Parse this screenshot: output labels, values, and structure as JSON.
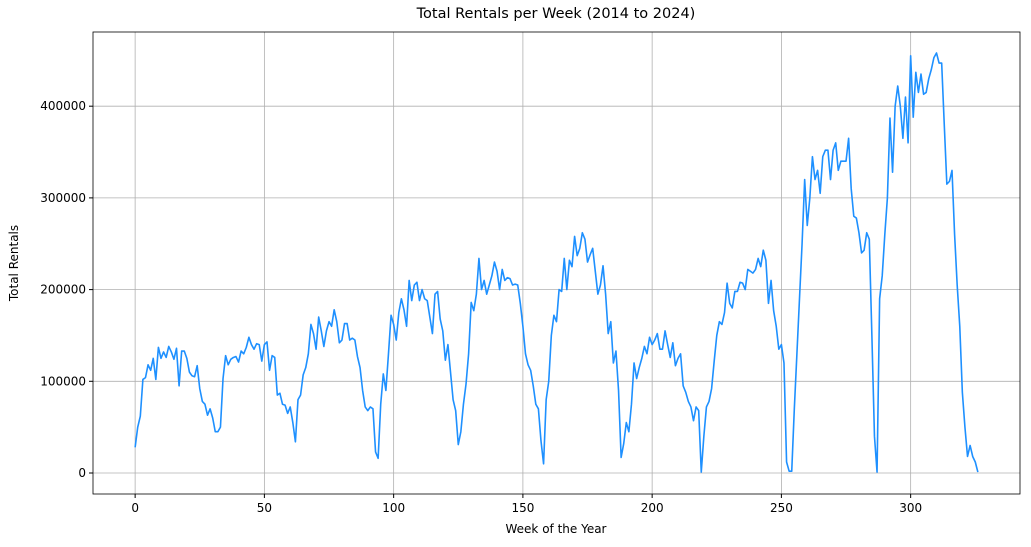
{
  "chart_data": {
    "type": "line",
    "title": "Total Rentals per Week (2014 to 2024)",
    "x_label": "Week of the Year",
    "y_label": "Total Rentals",
    "grid": true,
    "x": [
      0,
      1,
      2,
      3,
      4,
      5,
      6,
      7,
      8,
      9,
      10,
      11,
      12,
      13,
      14,
      15,
      16,
      17,
      18,
      19,
      20,
      21,
      22,
      23,
      24,
      25,
      26,
      27,
      28,
      29,
      30,
      31,
      32,
      33,
      34,
      35,
      36,
      37,
      38,
      39,
      40,
      41,
      42,
      43,
      44,
      45,
      46,
      47,
      48,
      49,
      50,
      51,
      52,
      53,
      54,
      55,
      56,
      57,
      58,
      59,
      60,
      61,
      62,
      63,
      64,
      65,
      66,
      67,
      68,
      69,
      70,
      71,
      72,
      73,
      74,
      75,
      76,
      77,
      78,
      79,
      80,
      81,
      82,
      83,
      84,
      85,
      86,
      87,
      88,
      89,
      90,
      91,
      92,
      93,
      94,
      95,
      96,
      97,
      98,
      99,
      100,
      101,
      102,
      103,
      104,
      105,
      106,
      107,
      108,
      109,
      110,
      111,
      112,
      113,
      114,
      115,
      116,
      117,
      118,
      119,
      120,
      121,
      122,
      123,
      124,
      125,
      126,
      127,
      128,
      129,
      130,
      131,
      132,
      133,
      134,
      135,
      136,
      137,
      138,
      139,
      140,
      141,
      142,
      143,
      144,
      145,
      146,
      147,
      148,
      149,
      150,
      151,
      152,
      153,
      154,
      155,
      156,
      157,
      158,
      159,
      160,
      161,
      162,
      163,
      164,
      165,
      166,
      167,
      168,
      169,
      170,
      171,
      172,
      173,
      174,
      175,
      176,
      177,
      178,
      179,
      180,
      181,
      182,
      183,
      184,
      185,
      186,
      187,
      188,
      189,
      190,
      191,
      192,
      193,
      194,
      195,
      196,
      197,
      198,
      199,
      200,
      201,
      202,
      203,
      204,
      205,
      206,
      207,
      208,
      209,
      210,
      211,
      212,
      213,
      214,
      215,
      216,
      217,
      218,
      219,
      220,
      221,
      222,
      223,
      224,
      225,
      226,
      227,
      228,
      229,
      230,
      231,
      232,
      233,
      234,
      235,
      236,
      237,
      238,
      239,
      240,
      241,
      242,
      243,
      244,
      245,
      246,
      247,
      248,
      249,
      250,
      251,
      252,
      253,
      254,
      255,
      256,
      257,
      258,
      259,
      260,
      261,
      262,
      263,
      264,
      265,
      266,
      267,
      268,
      269,
      270,
      271,
      272,
      273,
      274,
      275,
      276,
      277,
      278,
      279,
      280,
      281,
      282,
      283,
      284,
      285,
      286,
      287,
      288,
      289,
      290,
      291,
      292,
      293,
      294,
      295,
      296,
      297,
      298,
      299,
      300,
      301,
      302,
      303,
      304,
      305,
      306,
      307,
      308,
      309,
      310,
      311,
      312,
      313,
      314,
      315,
      316,
      317,
      318,
      319,
      320,
      321,
      322,
      323,
      324,
      325,
      326
    ],
    "series": [
      {
        "name": "Total Rentals",
        "color": "#1e90ff",
        "values": [
          28000,
          50000,
          62000,
          102000,
          104000,
          118000,
          112000,
          125000,
          102000,
          137000,
          125000,
          132000,
          126000,
          138000,
          132000,
          124000,
          136000,
          95000,
          133000,
          133000,
          125000,
          110000,
          106000,
          105000,
          117000,
          92000,
          78000,
          75000,
          63000,
          70000,
          60000,
          45000,
          45000,
          50000,
          103000,
          128000,
          118000,
          124000,
          126000,
          127000,
          121000,
          133000,
          130000,
          137000,
          148000,
          140000,
          135000,
          141000,
          140000,
          122000,
          140000,
          143000,
          112000,
          128000,
          126000,
          85000,
          87000,
          75000,
          74000,
          65000,
          72000,
          55000,
          34000,
          80000,
          85000,
          107000,
          115000,
          130000,
          162000,
          152000,
          135000,
          170000,
          155000,
          138000,
          155000,
          165000,
          160000,
          178000,
          165000,
          142000,
          145000,
          163000,
          163000,
          145000,
          147000,
          145000,
          127000,
          115000,
          90000,
          72000,
          68000,
          72000,
          70000,
          23000,
          16000,
          75000,
          108000,
          90000,
          130000,
          172000,
          162000,
          145000,
          175000,
          190000,
          178000,
          160000,
          210000,
          188000,
          205000,
          208000,
          188000,
          200000,
          190000,
          188000,
          170000,
          152000,
          195000,
          198000,
          168000,
          155000,
          123000,
          140000,
          110000,
          80000,
          68000,
          31000,
          45000,
          75000,
          97000,
          130000,
          186000,
          177000,
          195000,
          234000,
          200000,
          210000,
          195000,
          205000,
          215000,
          230000,
          220000,
          200000,
          222000,
          210000,
          213000,
          212000,
          205000,
          206000,
          205000,
          185000,
          160000,
          130000,
          118000,
          112000,
          95000,
          75000,
          70000,
          35000,
          10000,
          80000,
          100000,
          150000,
          172000,
          165000,
          200000,
          198000,
          234000,
          200000,
          232000,
          225000,
          258000,
          237000,
          245000,
          262000,
          255000,
          230000,
          238000,
          245000,
          220000,
          195000,
          205000,
          226000,
          195000,
          152000,
          165000,
          120000,
          133000,
          90000,
          17000,
          32000,
          55000,
          45000,
          75000,
          120000,
          103000,
          115000,
          125000,
          138000,
          130000,
          148000,
          140000,
          145000,
          152000,
          135000,
          135000,
          155000,
          140000,
          126000,
          142000,
          117000,
          125000,
          130000,
          95000,
          88000,
          78000,
          72000,
          57000,
          72000,
          68000,
          1000,
          40000,
          72000,
          78000,
          92000,
          122000,
          150000,
          165000,
          162000,
          175000,
          207000,
          185000,
          180000,
          198000,
          198000,
          208000,
          207000,
          200000,
          222000,
          220000,
          218000,
          222000,
          234000,
          225000,
          243000,
          232000,
          185000,
          210000,
          177000,
          160000,
          135000,
          140000,
          120000,
          12000,
          2000,
          2000,
          70000,
          130000,
          190000,
          250000,
          320000,
          270000,
          300000,
          345000,
          320000,
          330000,
          305000,
          345000,
          352000,
          352000,
          320000,
          352000,
          360000,
          330000,
          340000,
          340000,
          340000,
          365000,
          310000,
          280000,
          278000,
          262000,
          240000,
          243000,
          262000,
          255000,
          150000,
          40000,
          1000,
          190000,
          215000,
          260000,
          300000,
          387000,
          328000,
          400000,
          422000,
          400000,
          365000,
          410000,
          360000,
          455000,
          388000,
          437000,
          415000,
          435000,
          413000,
          415000,
          430000,
          440000,
          453000,
          458000,
          447000,
          447000,
          380000,
          315000,
          318000,
          330000,
          260000,
          205000,
          160000,
          88000,
          50000,
          18000,
          30000,
          18000,
          12000,
          1000
        ]
      }
    ],
    "xlim": [
      -16.3,
      342.3
    ],
    "xticks": [
      0,
      50,
      100,
      150,
      200,
      250,
      300
    ],
    "ylim": [
      -22900,
      480900
    ],
    "yticks": [
      0,
      100000,
      200000,
      300000,
      400000
    ]
  }
}
